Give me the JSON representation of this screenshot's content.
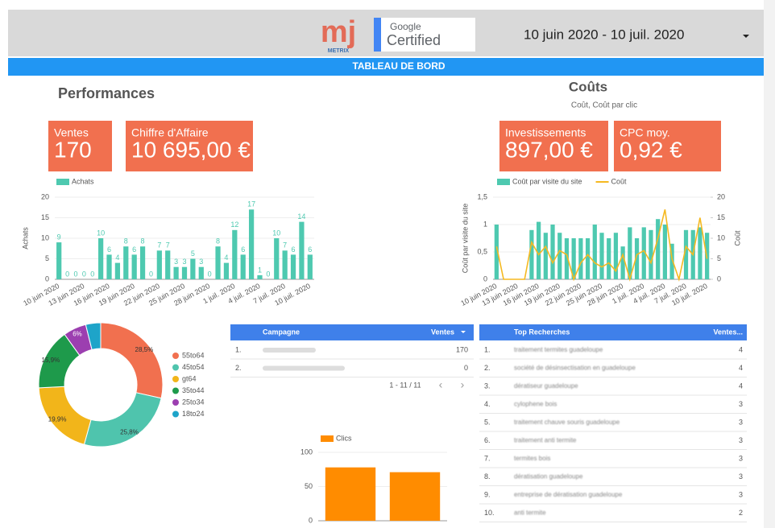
{
  "header": {
    "logo_text": "mj",
    "logo_subtext": "METRIX",
    "badge_top": "Google",
    "badge_bottom": "Certified",
    "date_range": "10 juin 2020 - 10 juil. 2020"
  },
  "banner": "TABLEAU DE BORD",
  "sections": {
    "performances": "Performances",
    "couts": "Coûts",
    "couts_subtitle": "Coût, Coût par clic"
  },
  "kpis": [
    {
      "label": "Ventes",
      "value": "170"
    },
    {
      "label": "Chiffre d'Affaire",
      "value": "10 695,00 €"
    },
    {
      "label": "Investissements",
      "value": "897,00 €"
    },
    {
      "label": "CPC moy.",
      "value": "0,92 €"
    }
  ],
  "chart_data": [
    {
      "type": "bar",
      "y_label": "Achats",
      "data_labels": true,
      "categories": [
        "10 juin 2020",
        null,
        null,
        "13 juin 2020",
        null,
        null,
        "16 juin 2020",
        null,
        null,
        "19 juin 2020",
        null,
        null,
        "22 juin 2020",
        null,
        null,
        "25 juin 2020",
        null,
        null,
        "28 juin 2020",
        null,
        null,
        "1 juil. 2020",
        null,
        null,
        "4 juil. 2020",
        null,
        null,
        "7 juil. 2020",
        null,
        null,
        "10 juil. 2020"
      ],
      "series": [
        {
          "name": "Achats",
          "color": "#4ec9b0",
          "values": [
            9,
            0,
            0,
            0,
            0,
            10,
            6,
            4,
            8,
            6,
            8,
            0,
            7,
            7,
            3,
            3,
            5,
            3,
            0,
            8,
            4,
            12,
            6,
            17,
            1,
            0,
            10,
            7,
            6,
            14,
            6
          ]
        }
      ],
      "ylim": [
        0,
        20
      ],
      "yticks": [
        0,
        5,
        10,
        15,
        20
      ]
    },
    {
      "type": "combo",
      "y_label": "Coût par visite du site",
      "y2_label": "Coût",
      "categories": [
        "10 juin 2020",
        null,
        null,
        "13 juin 2020",
        null,
        null,
        "16 juin 2020",
        null,
        null,
        "19 juin 2020",
        null,
        null,
        "22 juin 2020",
        null,
        null,
        "25 juin 2020",
        null,
        null,
        "28 juin 2020",
        null,
        null,
        "1 juil. 2020",
        null,
        null,
        "4 juil. 2020",
        null,
        null,
        "7 juil. 2020",
        null,
        null,
        "10 juil. 2020"
      ],
      "series": [
        {
          "name": "Coût par visite du site",
          "color": "#4ec9b0",
          "values": [
            1.0,
            null,
            null,
            null,
            null,
            0.9,
            1.05,
            0.85,
            1.0,
            0.85,
            0.75,
            0.75,
            0.75,
            0.75,
            1.0,
            0.85,
            0.75,
            0.85,
            0.6,
            0.95,
            0.75,
            0.95,
            0.9,
            1.1,
            1.0,
            0.65,
            null,
            0.9,
            0.9,
            0.95,
            0.85
          ]
        },
        {
          "name": "Coût",
          "color": "#f5b921",
          "axis": "y2",
          "values": [
            8,
            0,
            0,
            0,
            0,
            9,
            6,
            8,
            4,
            7,
            6,
            0,
            4,
            6,
            4,
            3,
            4,
            2,
            6,
            0,
            6,
            7,
            4,
            10,
            17,
            5,
            0,
            8,
            6,
            15,
            5
          ]
        }
      ],
      "ylim": [
        0,
        1.5
      ],
      "yticks": [
        0,
        {
          "value": 0.5,
          "label": "0,5"
        },
        1,
        {
          "value": 1.5,
          "label": "1,5"
        }
      ],
      "y2lim": [
        0,
        20
      ],
      "y2ticks": [
        0,
        5,
        10,
        15,
        20
      ]
    },
    {
      "type": "pie",
      "donut": true,
      "categories": [
        "55to64",
        "45to54",
        "gt64",
        "35to44",
        "25to34",
        "18to24"
      ],
      "values": [
        28.5,
        25.8,
        19.9,
        15.9,
        6,
        3.9
      ],
      "value_labels": [
        "28,5%",
        "25,8%",
        "19,9%",
        "15,9%",
        "6%",
        null
      ],
      "colors": [
        "#f1704f",
        "#4fc4ad",
        "#f2b51a",
        "#1e9a4b",
        "#9c3fb0",
        "#1ea4c9"
      ]
    },
    {
      "type": "bar",
      "categories": [
        null,
        null
      ],
      "series": [
        {
          "name": "Clics",
          "color": "#ff8c00",
          "values": [
            78,
            71
          ]
        }
      ],
      "ylim": [
        0,
        100
      ],
      "yticks": [
        0,
        50,
        100
      ]
    }
  ],
  "campaign_table": {
    "headers": [
      "Campagne",
      "Ventes"
    ],
    "rows": [
      [
        "1.",
        "170"
      ],
      [
        "2.",
        "0"
      ]
    ],
    "pagination": "1 - 11 / 11"
  },
  "search_table": {
    "headers": [
      "Top Recherches",
      "Ventes..."
    ],
    "rows": [
      [
        "1.",
        "traitement termites guadeloupe",
        "4"
      ],
      [
        "2.",
        "société de désinsectisation en guadeloupe",
        "4"
      ],
      [
        "3.",
        "dératiseur guadeloupe",
        "4"
      ],
      [
        "4.",
        "cylophene bois",
        "3"
      ],
      [
        "5.",
        "traitement chauve souris guadeloupe",
        "3"
      ],
      [
        "6.",
        "traitement anti termite",
        "3"
      ],
      [
        "7.",
        "termites bois",
        "3"
      ],
      [
        "8.",
        "dératisation guadeloupe",
        "3"
      ],
      [
        "9.",
        "entreprise de dératisation guadeloupe",
        "3"
      ],
      [
        "10.",
        "anti termite",
        "2"
      ]
    ]
  }
}
